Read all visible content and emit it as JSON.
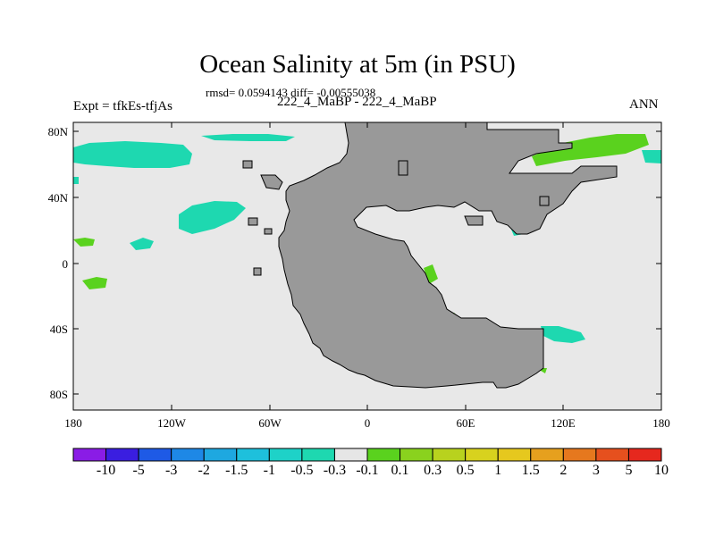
{
  "plot": {
    "title": "Ocean Salinity at 5m (in PSU)",
    "subtitle": "rmsd= 0.0594143 diff= -0.00555038",
    "left_string": "Expt = tfkEs-tfjAs",
    "center_string": "222_4_MaBP - 222_4_MaBP",
    "right_string": "ANN"
  },
  "map": {
    "land_color": "#999999",
    "ocean_background_color": "#e8e8e8",
    "lat_labels": [
      "80N",
      "40N",
      "0",
      "40S",
      "80S"
    ],
    "lon_labels": [
      "180",
      "120W",
      "60W",
      "0",
      "60E",
      "120E",
      "180"
    ]
  },
  "colorbar": {
    "colors": [
      "#8a1ce6",
      "#3a1ee0",
      "#1e5ae6",
      "#1e88e6",
      "#1ea8e0",
      "#1ec0dc",
      "#1ed2c8",
      "#1ed8b0",
      "#e6e6e6",
      "#5ad21e",
      "#8ad21e",
      "#b8d21e",
      "#d8d21e",
      "#e6c81e",
      "#e6a01e",
      "#e6781e",
      "#e6501e",
      "#e6281e"
    ],
    "labels": [
      "-10",
      "-5",
      "-3",
      "-2",
      "-1.5",
      "-1",
      "-0.5",
      "-0.3",
      "-0.1",
      "0.1",
      "0.3",
      "0.5",
      "1",
      "1.5",
      "2",
      "3",
      "5",
      "10"
    ]
  }
}
